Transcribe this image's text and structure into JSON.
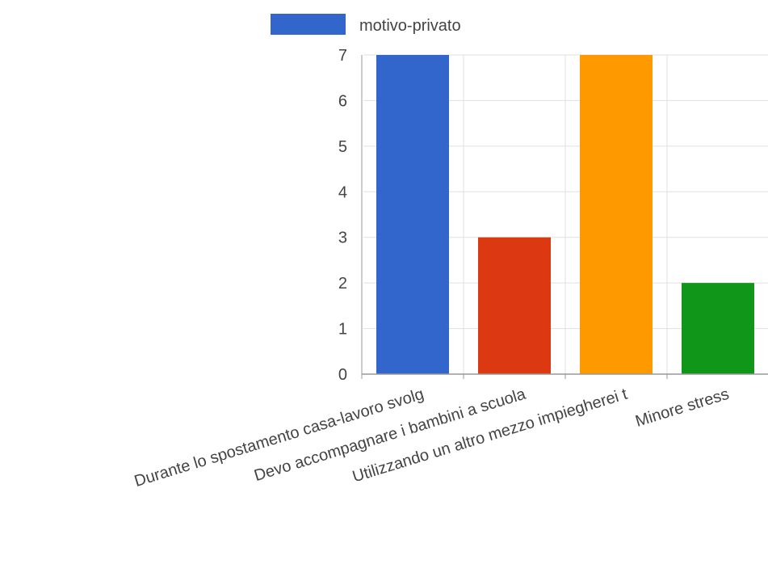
{
  "chart_data": {
    "type": "bar",
    "categories": [
      "Durante lo spostamento casa-lavoro svolg",
      "Devo accompagnare i bambini a scuola",
      "Utilizzando un altro mezzo impiegherei t",
      "Minore stress"
    ],
    "series": [
      {
        "name": "motivo-privato",
        "values": [
          7,
          3,
          7,
          2
        ]
      }
    ],
    "bar_colors": [
      "#3366cc",
      "#dc3912",
      "#ff9900",
      "#109618"
    ],
    "legend": {
      "position": "top",
      "swatch_color": "#3366cc"
    },
    "ylim": [
      0,
      7
    ],
    "yticks": [
      "0",
      "1",
      "2",
      "3",
      "4",
      "5",
      "6",
      "7"
    ],
    "grid": true,
    "title": "",
    "xlabel": "",
    "ylabel": ""
  },
  "colors": {
    "grid": "#e0e0e0",
    "axis": "#999999",
    "tick_text": "#444444",
    "label_text": "#444444"
  }
}
